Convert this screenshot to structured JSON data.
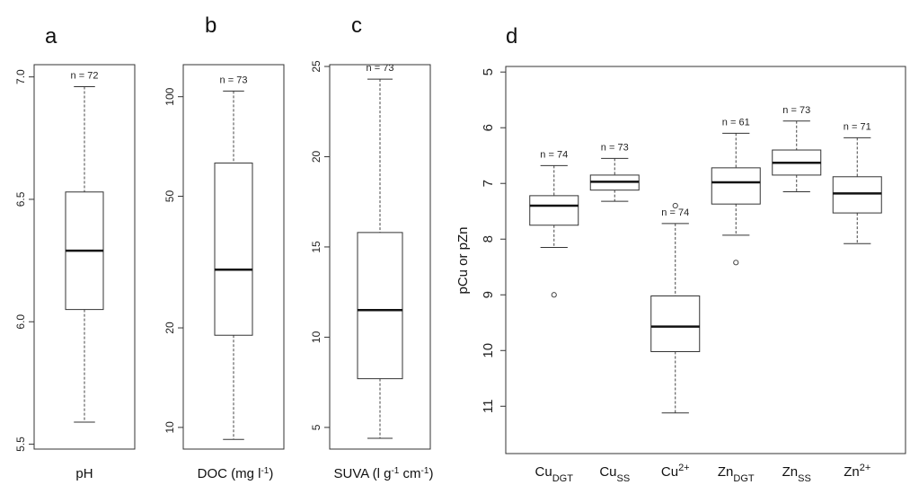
{
  "chart_data": [
    {
      "type": "box",
      "panel": "a",
      "xlabel": "pH",
      "ylim": [
        5.48,
        7.05
      ],
      "y_ticks": [
        5.5,
        6.0,
        6.5,
        7.0
      ],
      "y_tick_labels": [
        "5.5",
        "6.0",
        "6.5",
        "7.0"
      ],
      "boxes": [
        {
          "n_label": "n = 72",
          "min": 5.59,
          "q1": 6.05,
          "median": 6.29,
          "q3": 6.53,
          "max": 6.96,
          "outliers": []
        }
      ]
    },
    {
      "type": "box",
      "panel": "b",
      "xlabel": "DOC (mg l",
      "xlabel_sup": "-1",
      "xlabel_end": ")",
      "y_scale": "log",
      "ylim": [
        8.6,
        125
      ],
      "y_ticks": [
        10,
        20,
        50,
        100
      ],
      "y_tick_labels": [
        "10",
        "20",
        "50",
        "100"
      ],
      "boxes": [
        {
          "n_label": "n = 73",
          "min": 9.2,
          "q1": 19.0,
          "median": 30.0,
          "q3": 63.0,
          "max": 104,
          "outliers": []
        }
      ]
    },
    {
      "type": "box",
      "panel": "c",
      "xlabel": "SUVA (l g",
      "xlabel_sup1": "-1",
      "xlabel_mid": " cm",
      "xlabel_sup2": "-1",
      "xlabel_end": ")",
      "ylim": [
        3.8,
        25.1
      ],
      "y_ticks": [
        5,
        10,
        15,
        20,
        25
      ],
      "y_tick_labels": [
        "5",
        "10",
        "15",
        "20",
        "25"
      ],
      "boxes": [
        {
          "n_label": "n = 73",
          "min": 4.4,
          "q1": 7.7,
          "median": 11.5,
          "q3": 15.8,
          "max": 24.3,
          "outliers": []
        }
      ]
    },
    {
      "type": "box",
      "panel": "d",
      "ylabel": "pCu or pZn",
      "y_reversed": true,
      "ylim": [
        4.9,
        11.85
      ],
      "y_ticks": [
        5,
        6,
        7,
        8,
        9,
        10,
        11
      ],
      "y_tick_labels": [
        "5",
        "6",
        "7",
        "8",
        "9",
        "10",
        "11"
      ],
      "boxes": [
        {
          "base": "Cu",
          "sub": "DGT",
          "sup": "",
          "n_label": "n = 74",
          "min": 6.68,
          "q1": 7.22,
          "median": 7.4,
          "q3": 7.75,
          "max": 8.15,
          "outliers": [
            9.0
          ]
        },
        {
          "base": "Cu",
          "sub": "SS",
          "sup": "",
          "n_label": "n = 73",
          "min": 6.55,
          "q1": 6.85,
          "median": 6.97,
          "q3": 7.12,
          "max": 7.32,
          "outliers": []
        },
        {
          "base": "Cu",
          "sub": "",
          "sup": "2+",
          "n_label": "n = 74",
          "min": 7.72,
          "q1": 9.02,
          "median": 9.57,
          "q3": 10.02,
          "max": 11.12,
          "outliers": [
            7.4
          ]
        },
        {
          "base": "Zn",
          "sub": "DGT",
          "sup": "",
          "n_label": "n = 61",
          "min": 6.1,
          "q1": 6.72,
          "median": 6.98,
          "q3": 7.37,
          "max": 7.93,
          "outliers": [
            8.42
          ]
        },
        {
          "base": "Zn",
          "sub": "SS",
          "sup": "",
          "n_label": "n = 73",
          "min": 5.88,
          "q1": 6.4,
          "median": 6.63,
          "q3": 6.85,
          "max": 7.15,
          "outliers": []
        },
        {
          "base": "Zn",
          "sub": "",
          "sup": "2+",
          "n_label": "n = 71",
          "min": 6.18,
          "q1": 6.88,
          "median": 7.18,
          "q3": 7.53,
          "max": 8.08,
          "outliers": []
        }
      ]
    }
  ]
}
